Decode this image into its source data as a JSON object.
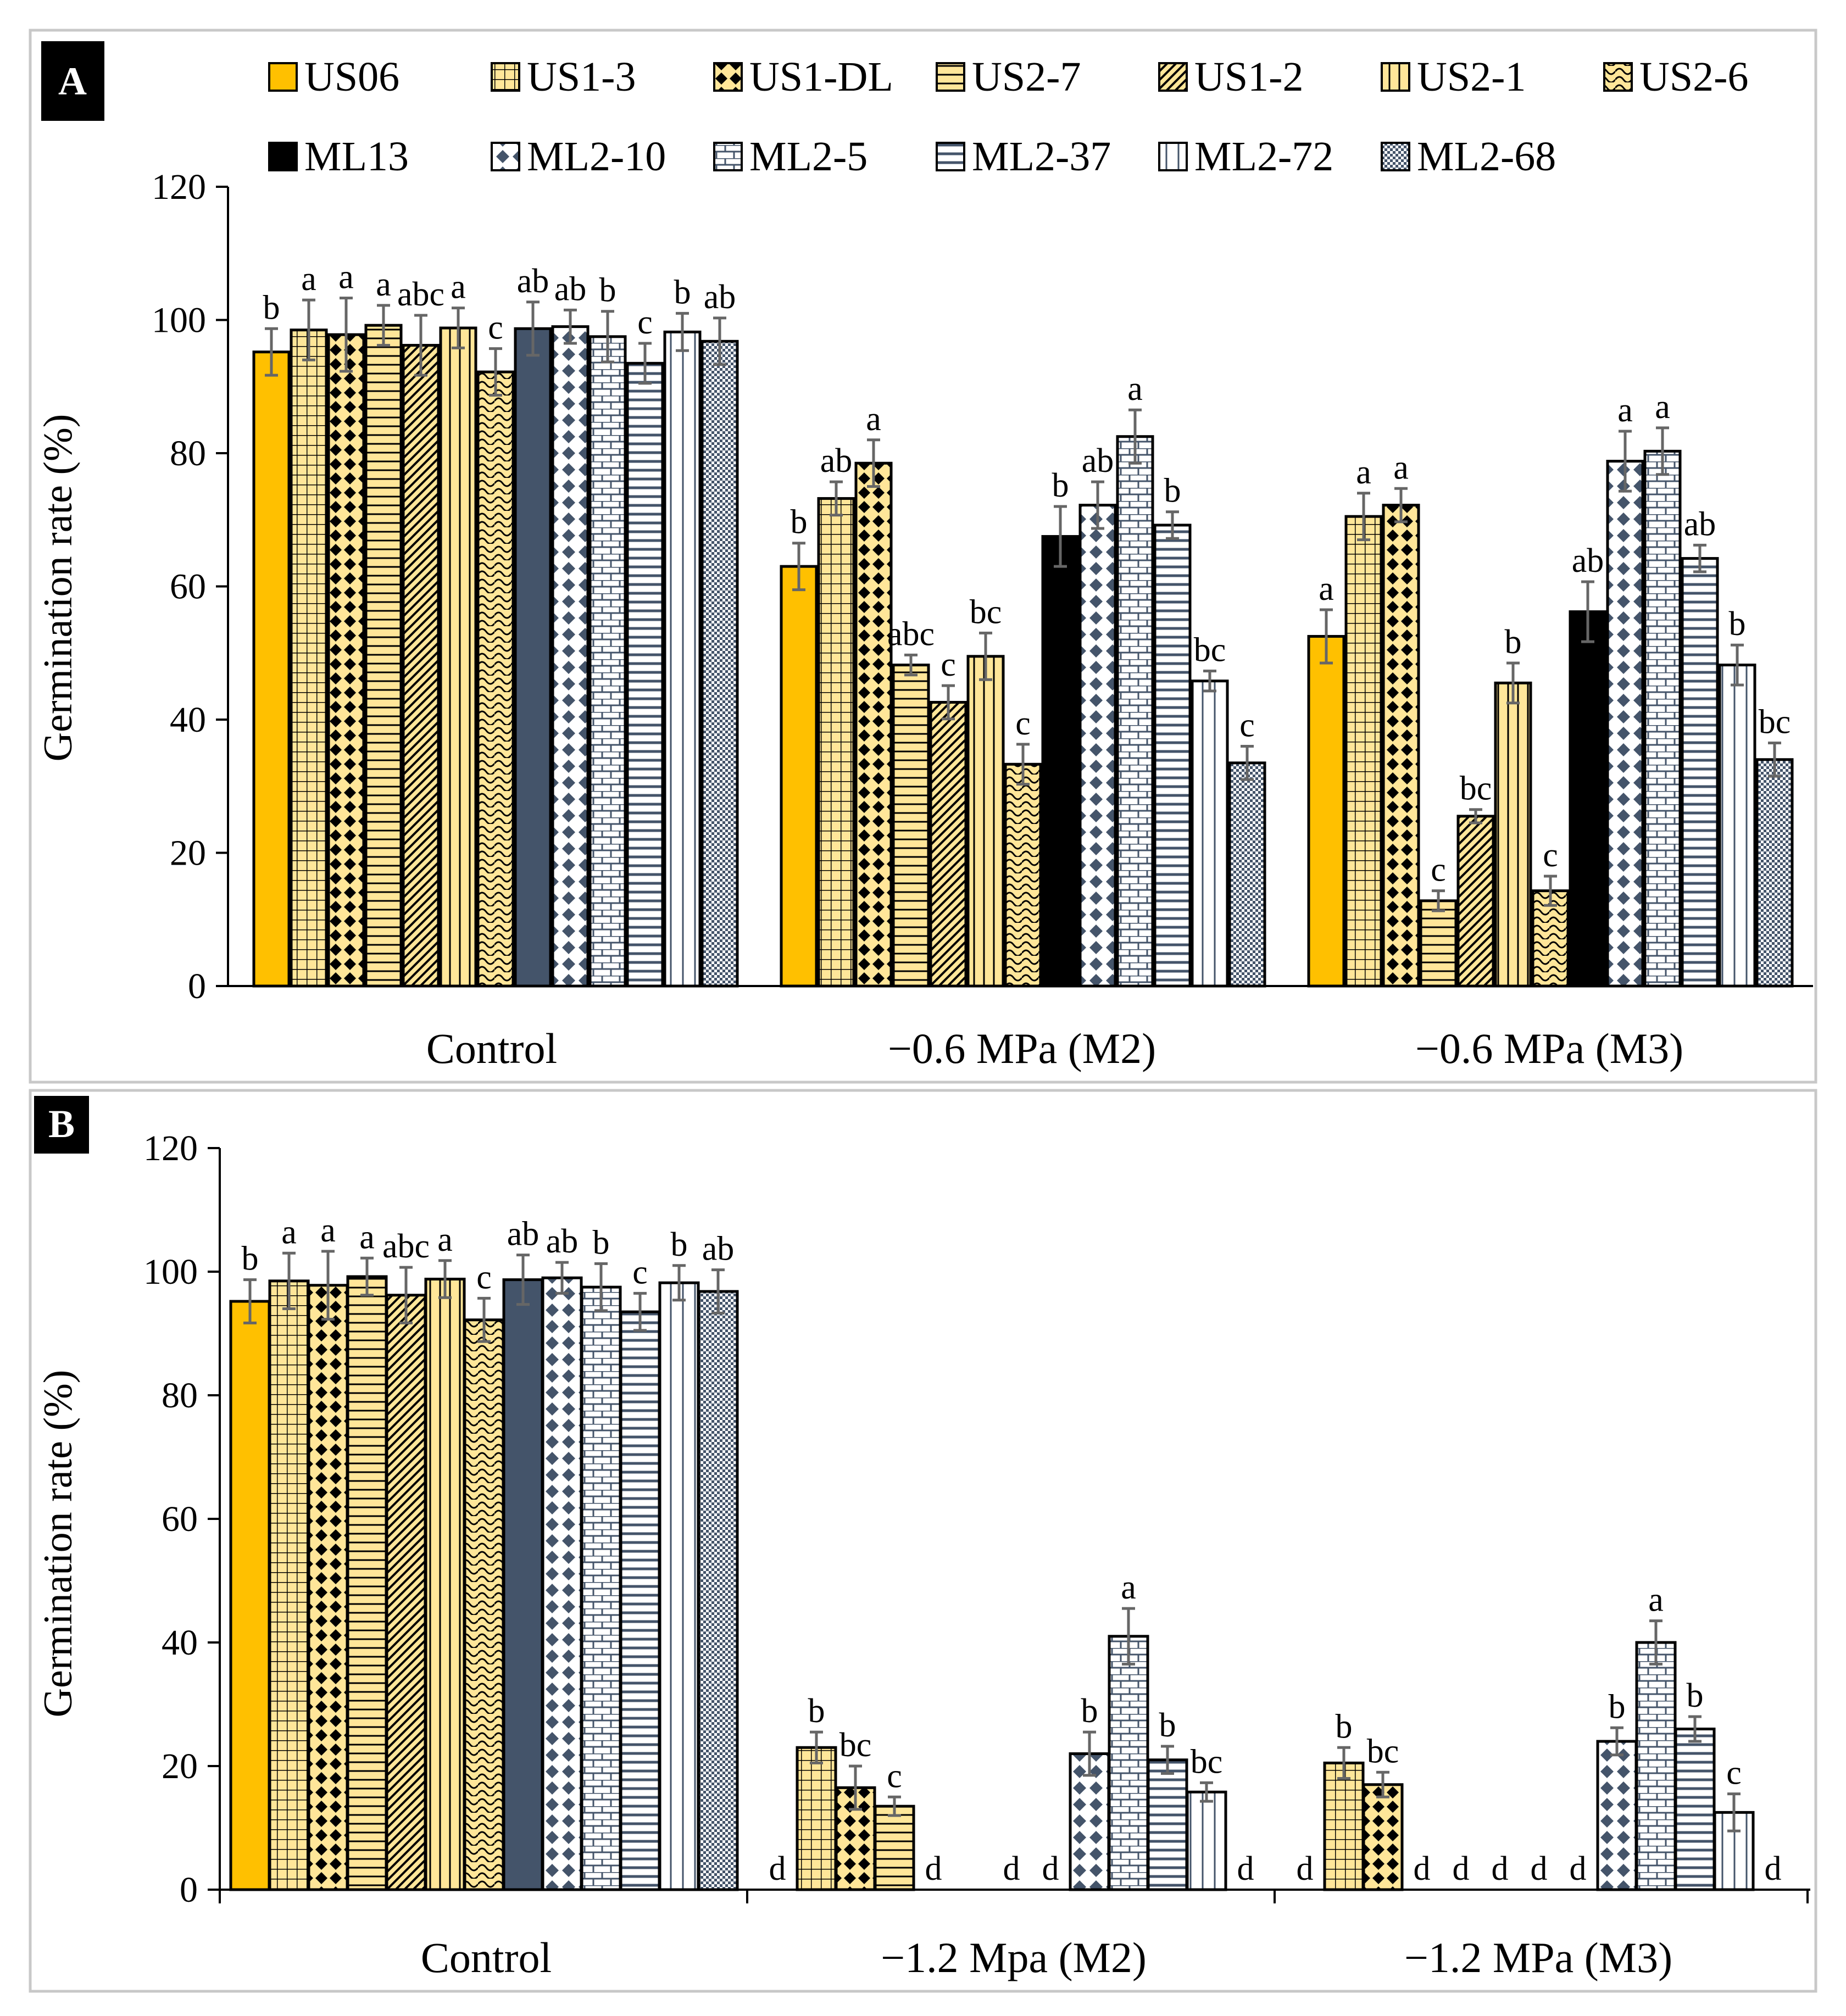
{
  "chart_data": [
    {
      "panel": "A",
      "type": "bar",
      "ylabel": "Germination rate (%)",
      "xlabel": "",
      "ylim": [
        0,
        120
      ],
      "yticks": [
        0,
        20,
        40,
        60,
        80,
        100,
        120
      ],
      "categories": [
        "Control",
        "−0.6 MPa (M2)",
        "−0.6 MPa (M3)"
      ],
      "series": [
        {
          "name": "US06",
          "values": [
            95.2,
            63.0,
            52.5
          ],
          "errors": [
            3.5,
            3.5,
            4.0
          ],
          "letters": [
            "b",
            "b",
            "a"
          ]
        },
        {
          "name": "US1-3",
          "values": [
            98.5,
            73.2,
            70.5
          ],
          "errors": [
            4.5,
            2.5,
            3.5
          ],
          "letters": [
            "a",
            "ab",
            "a"
          ]
        },
        {
          "name": "US1-DL",
          "values": [
            97.8,
            78.5,
            72.2
          ],
          "errors": [
            5.5,
            3.5,
            2.5
          ],
          "letters": [
            "a",
            "a",
            "a"
          ]
        },
        {
          "name": "US2-7",
          "values": [
            99.2,
            48.2,
            12.8
          ],
          "errors": [
            3.0,
            1.5,
            1.5
          ],
          "letters": [
            "a",
            "abc",
            "c"
          ]
        },
        {
          "name": "US1-2",
          "values": [
            96.2,
            42.6,
            25.5
          ],
          "errors": [
            4.5,
            2.5,
            1.0
          ],
          "letters": [
            "abc",
            "c",
            "bc"
          ]
        },
        {
          "name": "US2-1",
          "values": [
            98.8,
            49.5,
            45.5
          ],
          "errors": [
            3.0,
            3.5,
            3.0
          ],
          "letters": [
            "a",
            "bc",
            "b"
          ]
        },
        {
          "name": "US2-6",
          "values": [
            92.2,
            33.3,
            14.3
          ],
          "errors": [
            3.5,
            3.0,
            2.2
          ],
          "letters": [
            "c",
            "c",
            "c"
          ]
        },
        {
          "name": "ML13",
          "values": [
            98.7,
            67.5,
            56.2
          ],
          "errors": [
            4.0,
            4.5,
            4.5
          ],
          "letters": [
            "ab",
            "b",
            "ab"
          ]
        },
        {
          "name": "ML2-10",
          "values": [
            99.0,
            72.2,
            78.8
          ],
          "errors": [
            2.5,
            3.5,
            4.5
          ],
          "letters": [
            "ab",
            "ab",
            "a"
          ]
        },
        {
          "name": "ML2-5",
          "values": [
            97.5,
            82.5,
            80.3
          ],
          "errors": [
            3.8,
            4.0,
            3.5
          ],
          "letters": [
            "b",
            "a",
            "a"
          ]
        },
        {
          "name": "ML2-37",
          "values": [
            93.5,
            69.2,
            64.2
          ],
          "errors": [
            3.0,
            2.0,
            2.0
          ],
          "letters": [
            "c",
            "b",
            "ab"
          ]
        },
        {
          "name": "ML2-72",
          "values": [
            98.2,
            45.8,
            48.2
          ],
          "errors": [
            2.8,
            1.5,
            3.0
          ],
          "letters": [
            "b",
            "bc",
            "b"
          ]
        },
        {
          "name": "ML2-68",
          "values": [
            96.8,
            33.5,
            34.0
          ],
          "errors": [
            3.5,
            2.5,
            2.5
          ],
          "letters": [
            "ab",
            "c",
            "bc"
          ]
        }
      ]
    },
    {
      "panel": "B",
      "type": "bar",
      "ylabel": "Germination rate (%)",
      "xlabel": "",
      "ylim": [
        0,
        120
      ],
      "yticks": [
        0,
        20,
        40,
        60,
        80,
        100,
        120
      ],
      "categories": [
        "Control",
        "−1.2 Mpa (M2)",
        "−1.2 MPa (M3)"
      ],
      "series": [
        {
          "name": "US06",
          "values": [
            95.2,
            0,
            0
          ],
          "errors": [
            3.5,
            0,
            0
          ],
          "letters": [
            "b",
            "d",
            "d"
          ]
        },
        {
          "name": "US1-3",
          "values": [
            98.5,
            23.0,
            20.5
          ],
          "errors": [
            4.5,
            2.5,
            2.5
          ],
          "letters": [
            "a",
            "b",
            "b"
          ]
        },
        {
          "name": "US1-DL",
          "values": [
            97.8,
            16.5,
            17.0
          ],
          "errors": [
            5.5,
            3.5,
            2.0
          ],
          "letters": [
            "a",
            "bc",
            "bc"
          ]
        },
        {
          "name": "US2-7",
          "values": [
            99.2,
            13.5,
            0
          ],
          "errors": [
            3.0,
            1.5,
            0
          ],
          "letters": [
            "a",
            "c",
            "d"
          ]
        },
        {
          "name": "US1-2",
          "values": [
            96.2,
            0,
            0
          ],
          "errors": [
            4.5,
            0,
            0
          ],
          "letters": [
            "abc",
            "d",
            "d"
          ]
        },
        {
          "name": "US2-1",
          "values": [
            98.8,
            0,
            0
          ],
          "errors": [
            3.0,
            0,
            0
          ],
          "letters": [
            "a",
            "",
            "d"
          ]
        },
        {
          "name": "US2-6",
          "values": [
            92.2,
            0,
            0
          ],
          "errors": [
            3.5,
            0,
            0
          ],
          "letters": [
            "c",
            "d",
            "d"
          ]
        },
        {
          "name": "ML13",
          "values": [
            98.7,
            0,
            0
          ],
          "errors": [
            4.0,
            0,
            0
          ],
          "letters": [
            "ab",
            "d",
            "d"
          ]
        },
        {
          "name": "ML2-10",
          "values": [
            99.0,
            22.0,
            24.0
          ],
          "errors": [
            2.5,
            3.5,
            2.2
          ],
          "letters": [
            "ab",
            "b",
            "b"
          ]
        },
        {
          "name": "ML2-5",
          "values": [
            97.5,
            41.0,
            40.0
          ],
          "errors": [
            3.8,
            4.5,
            3.5
          ],
          "letters": [
            "b",
            "a",
            "a"
          ]
        },
        {
          "name": "ML2-37",
          "values": [
            93.5,
            21.0,
            26.0
          ],
          "errors": [
            3.0,
            2.2,
            2.0
          ],
          "letters": [
            "c",
            "b",
            "b"
          ]
        },
        {
          "name": "ML2-72",
          "values": [
            98.2,
            15.8,
            12.5
          ],
          "errors": [
            2.8,
            1.5,
            3.0
          ],
          "letters": [
            "b",
            "bc",
            "c"
          ]
        },
        {
          "name": "ML2-68",
          "values": [
            96.8,
            0,
            0
          ],
          "errors": [
            3.5,
            0,
            0
          ],
          "letters": [
            "ab",
            "d",
            "d"
          ]
        }
      ]
    }
  ],
  "legend": {
    "row1": [
      "US06",
      "US1-3",
      "US1-DL",
      "US2-7",
      "US1-2",
      "US2-1",
      "US2-6"
    ],
    "row2": [
      "ML13",
      "ML2-10",
      "ML2-5",
      "ML2-37",
      "ML2-72",
      "ML2-68"
    ]
  },
  "colors": {
    "US06": "#ffc000",
    "US_pattern": "#ffe699",
    "ML13": "#000000",
    "ML_pattern": "#44546a"
  },
  "series_patterns": {
    "US06": "solid-gold",
    "US1-3": "grid",
    "US1-DL": "diamonds",
    "US2-7": "horizontal-lines",
    "US1-2": "diagonal-lines",
    "US2-1": "vertical-lines",
    "US2-6": "waves",
    "ML13": "solid-black",
    "ML2-10": "dotted-diamonds",
    "ML2-5": "bricks",
    "ML2-37": "horizontal-lines",
    "ML2-72": "vertical-lines",
    "ML2-68": "checker"
  }
}
